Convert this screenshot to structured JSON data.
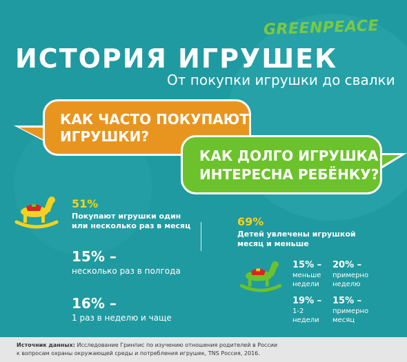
{
  "brand": {
    "logo_text": "GREENPEACE"
  },
  "header": {
    "title": "ИСТОРИЯ ИГРУШЕК",
    "subtitle": "От покупки игрушки до свалки"
  },
  "bubbles": {
    "q1_line1": "КАК ЧАСТО ПОКУПАЮТ",
    "q1_line2": "ИГРУШКИ?",
    "q2_line1": "КАК ДОЛГО ИГРУШКА",
    "q2_line2": "ИНТЕРЕСНА РЕБЁНКУ?"
  },
  "left_stats": [
    {
      "value": "51%",
      "desc_line1": "Покупают игрушки один",
      "desc_line2": "или несколько раз в месяц"
    },
    {
      "value": "15% –",
      "desc_line1": "несколько раз в полгода"
    },
    {
      "value": "16% –",
      "desc_line1": "1 раз в неделю и чаще"
    }
  ],
  "right_stats": {
    "main_value": "69%",
    "main_desc_line1": "Детей увлечены игрушкой",
    "main_desc_line2": "месяц и меньше",
    "grid": [
      {
        "value": "15% –",
        "desc_line1": "меньше",
        "desc_line2": "недели"
      },
      {
        "value": "20% –",
        "desc_line1": "примерно",
        "desc_line2": "неделю"
      },
      {
        "value": "19% –",
        "desc_line1": "1-2",
        "desc_line2": "недели"
      },
      {
        "value": "15% –",
        "desc_line1": "примерно",
        "desc_line2": "месяц"
      }
    ]
  },
  "source": {
    "label": "Источник данных:",
    "line1": " Исследование Гринпис по изучению отношения родителей в России",
    "line2": "к вопросам охраны окружающей среды и потребления игрушек, TNS Россия, 2016."
  },
  "colors": {
    "background": "#1f9aa0",
    "orange": "#e8951f",
    "green": "#6cc22c",
    "yellow": "#f4d31e",
    "white": "#ffffff"
  },
  "icons": [
    "rocking-horse-icon-left",
    "rocking-horse-icon-right"
  ]
}
